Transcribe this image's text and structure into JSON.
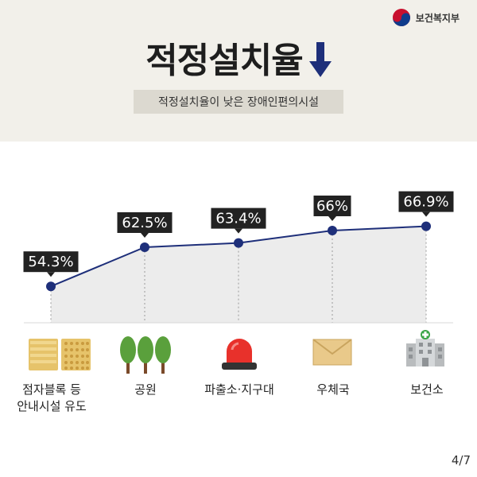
{
  "header": {
    "ministry": "보건복지부",
    "title": "적정설치율",
    "subtitle": "적정설치율이 낮은 장애인편의시설"
  },
  "chart_data": {
    "type": "line",
    "categories": [
      "점자블록 등\n안내시설 유도",
      "공원",
      "파출소·지구대",
      "우체국",
      "보건소"
    ],
    "values": [
      54.3,
      62.5,
      63.4,
      66,
      66.9
    ],
    "value_labels": [
      "54.3%",
      "62.5%",
      "63.4%",
      "66%",
      "66.9%"
    ],
    "title": "적정설치율",
    "xlabel": "",
    "ylabel": "",
    "grid": false,
    "colors": {
      "line": "#1e2f7a",
      "marker": "#1e2f7a",
      "label_bg": "#222222",
      "area": "#ececec"
    }
  },
  "icons": [
    "braille-block-icon",
    "park-trees-icon",
    "police-siren-icon",
    "post-envelope-icon",
    "health-center-icon"
  ],
  "page": {
    "indicator": "4/7"
  }
}
